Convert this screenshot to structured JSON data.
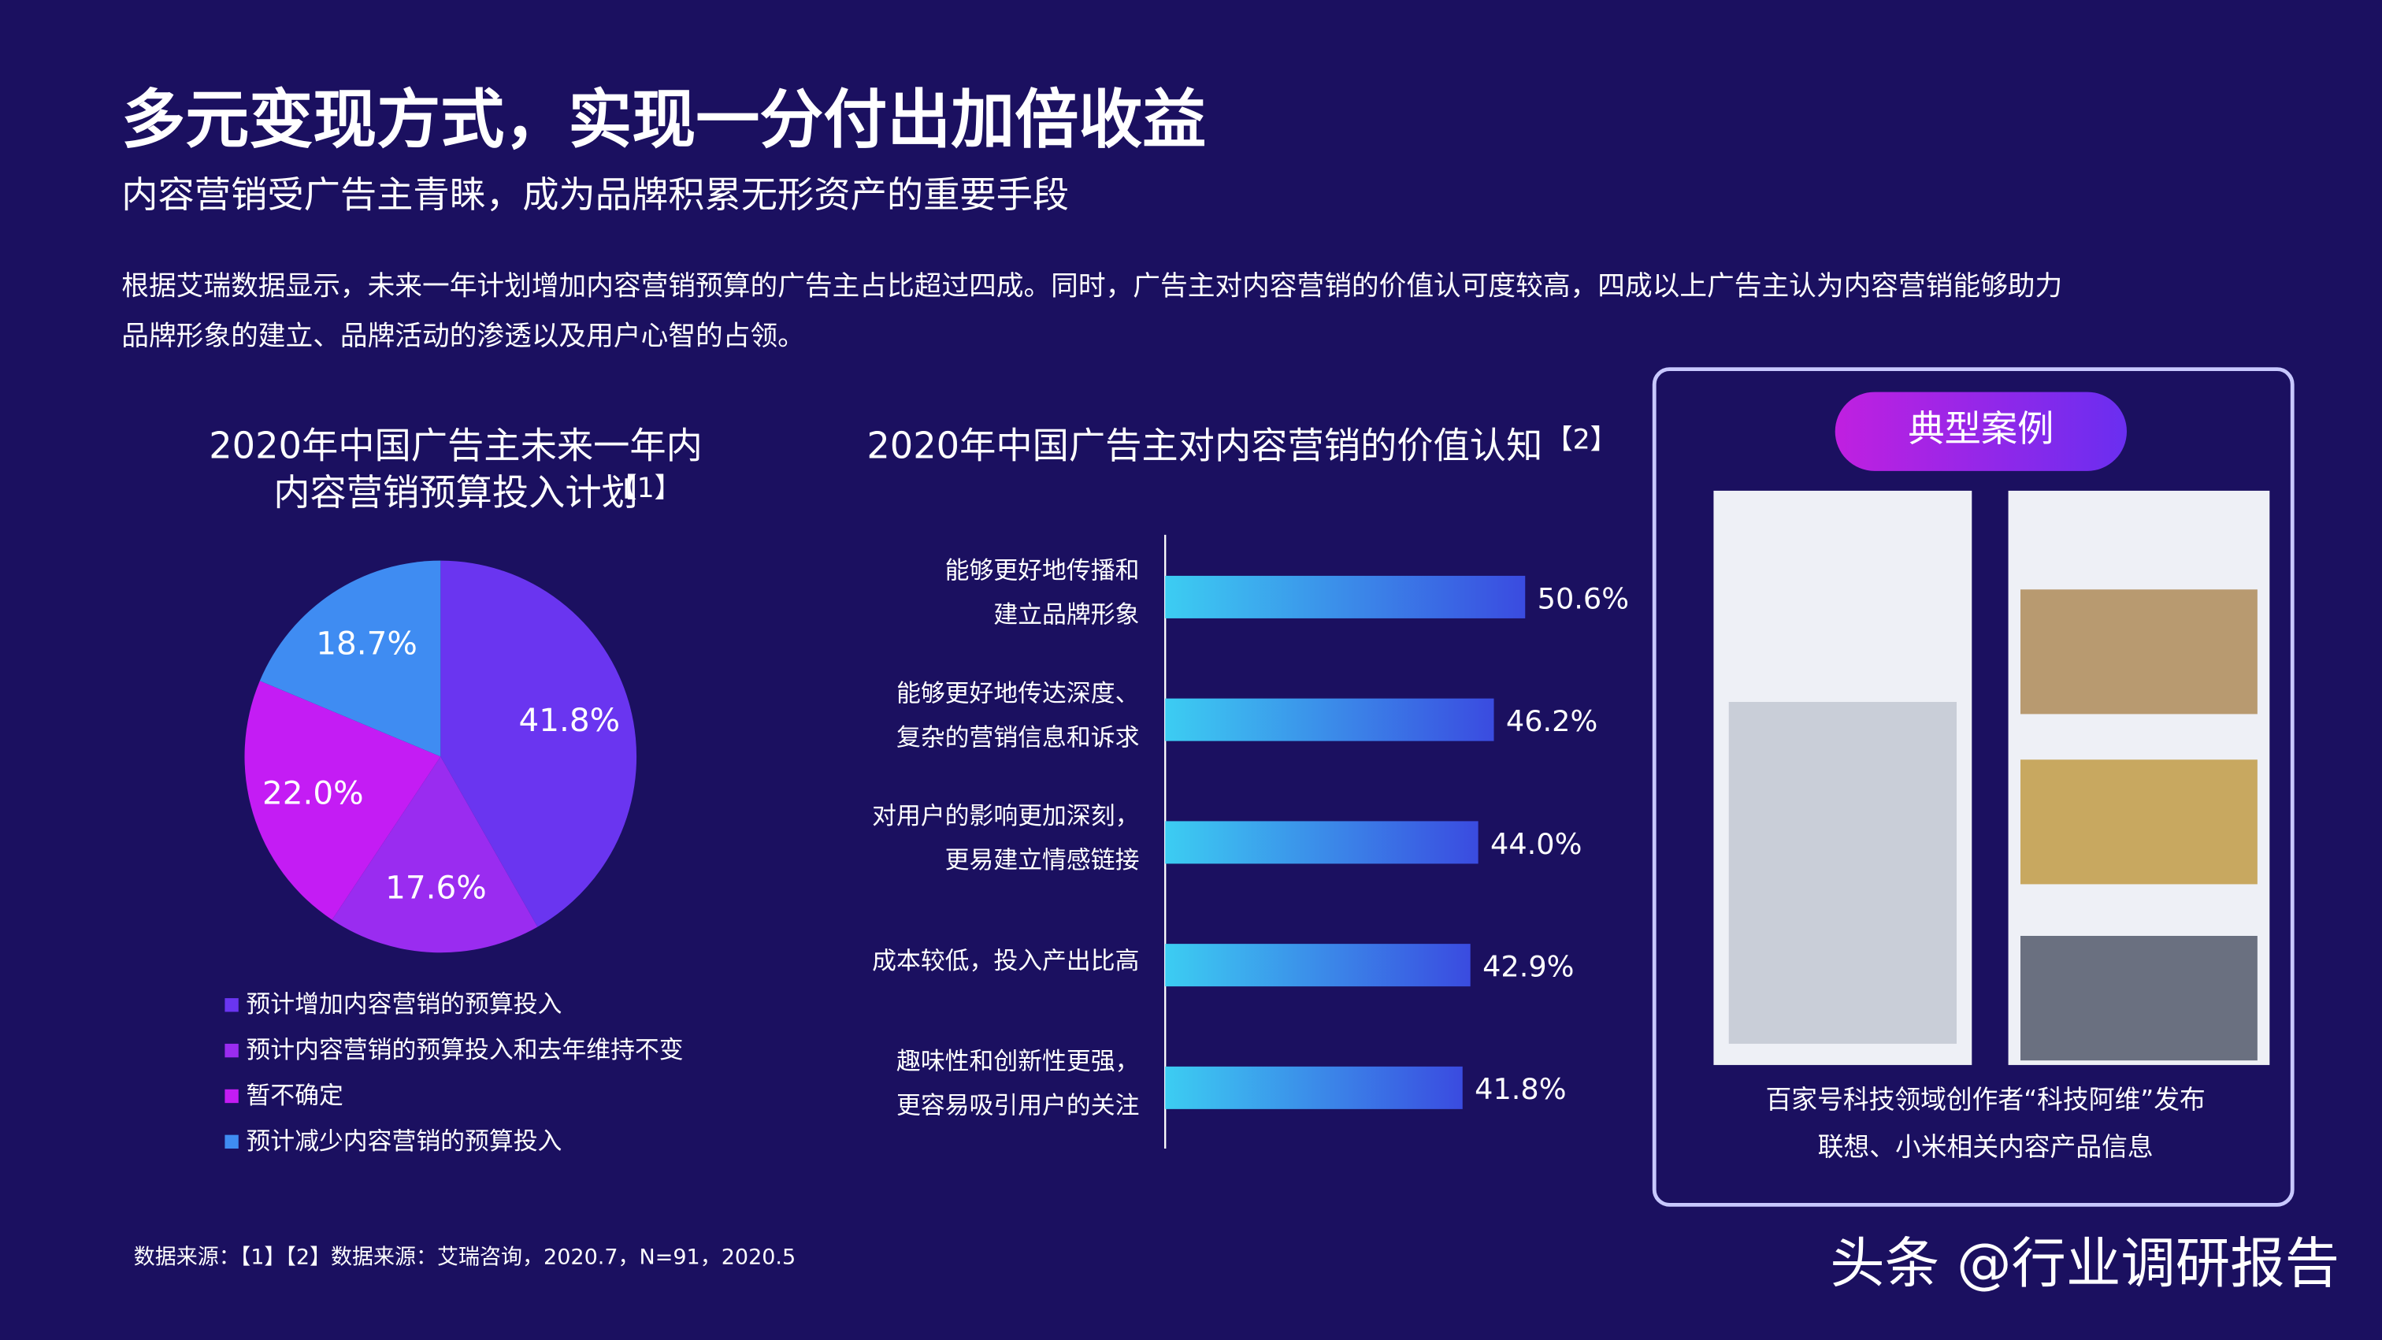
{
  "header": {
    "title": "多元变现方式，实现一分付出加倍收益",
    "subtitle": "内容营销受广告主青睐，成为品牌积累无形资产的重要手段",
    "body": [
      "根据艾瑞数据显示，未来一年计划增加内容营销预算的广告主占比超过四成。同时，广告主对内容营销的价值认可度较高，四成以上广告主认为内容营销能够助力",
      "品牌形象的建立、品牌活动的渗透以及用户心智的占领。"
    ]
  },
  "chart_data": [
    {
      "type": "pie",
      "title": [
        "2020年中国广告主未来一年内",
        "内容营销预算投入计划"
      ],
      "title_note": "【1】",
      "categories": [
        "预计增加内容营销的预算投入",
        "预计内容营销的预算投入和去年维持不变",
        "暂不确定",
        "预计减少内容营销的预算投入"
      ],
      "values": [
        41.8,
        17.6,
        22.0,
        18.7
      ],
      "value_labels": [
        "41.8%",
        "17.6%",
        "22.0%",
        "18.7%"
      ],
      "colors": [
        "#6a35f0",
        "#9a2cf0",
        "#c41cf4",
        "#3f8cf2"
      ]
    },
    {
      "type": "bar",
      "orientation": "horizontal",
      "title": "2020年中国广告主对内容营销的价值认知",
      "title_note": "【2】",
      "categories": [
        [
          "能够更好地传播和",
          "建立品牌形象"
        ],
        [
          "能够更好地传达深度、",
          "复杂的营销信息和诉求"
        ],
        [
          "对用户的影响更加深刻，",
          "更易建立情感链接"
        ],
        [
          "成本较低，投入产出比高"
        ],
        [
          "趣味性和创新性更强，",
          "更容易吸引用户的关注"
        ]
      ],
      "values": [
        50.6,
        46.2,
        44.0,
        42.9,
        41.8
      ],
      "value_labels": [
        "50.6%",
        "46.2%",
        "44.0%",
        "42.9%",
        "41.8%"
      ],
      "xlim": [
        0,
        60
      ],
      "colors": [
        "#3ccdf2",
        "#3a4be0"
      ]
    }
  ],
  "case": {
    "badge": "典型案例",
    "caption": [
      "百家号科技领域创作者“科技阿维”发布",
      "联想、小米相关内容产品信息"
    ]
  },
  "source": "数据来源：【1】【2】数据来源：艾瑞咨询，2020.7，N=91，2020.5",
  "watermark": "头条 @行业调研报告"
}
